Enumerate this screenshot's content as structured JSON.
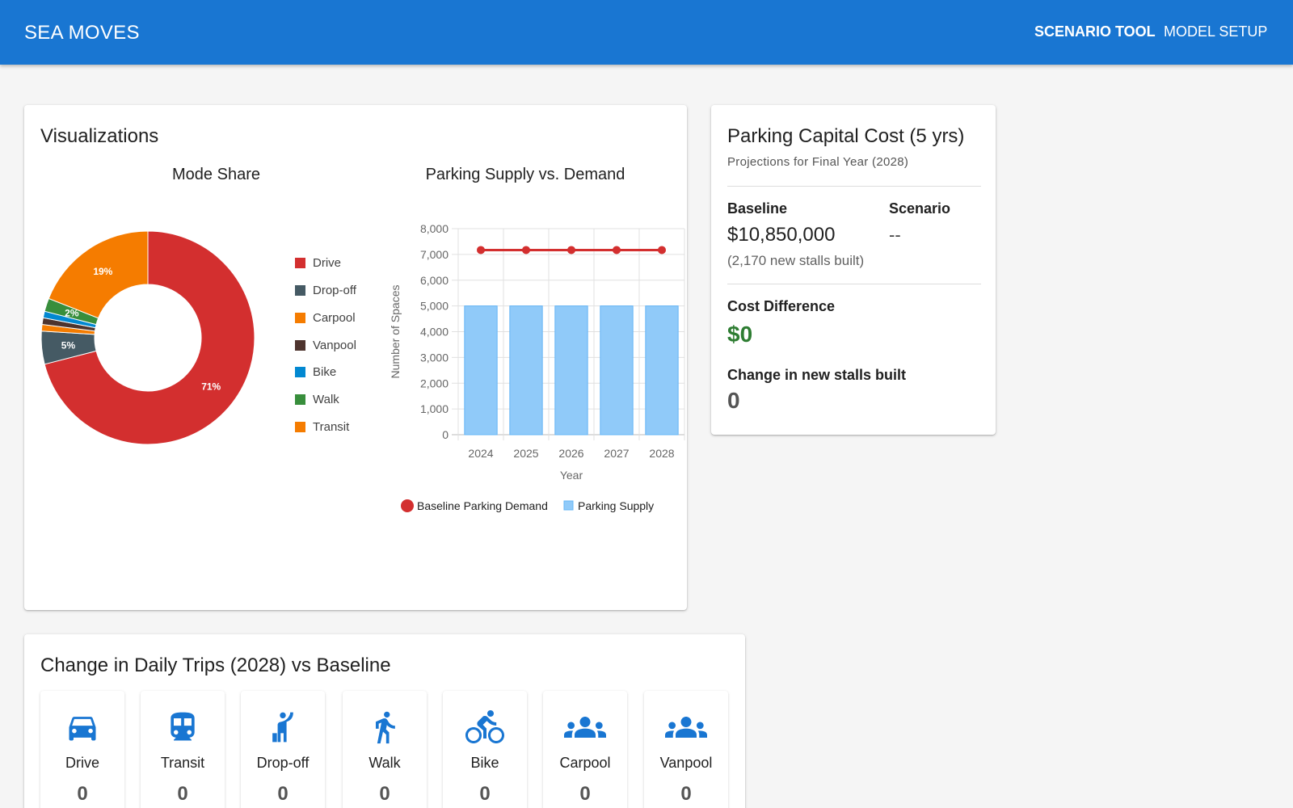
{
  "app": {
    "brand": "SEA MOVES",
    "nav": [
      {
        "label": "SCENARIO TOOL",
        "active": true
      },
      {
        "label": "MODEL SETUP",
        "active": false
      }
    ]
  },
  "visualizations": {
    "title": "Visualizations"
  },
  "colors": {
    "appbar": "#1976d2",
    "drive": "#d32f2f",
    "dropoff": "#455a64",
    "carpool": "#f57c00",
    "vanpool": "#4e342e",
    "bike": "#0288d1",
    "walk": "#388e3c",
    "transit": "#f57c00",
    "supply_bar": "#90caf9",
    "demand_line": "#d32f2f",
    "positive": "#2e7d32",
    "icon": "#1976d2"
  },
  "chart_data": [
    {
      "type": "pie",
      "title": "Mode Share",
      "donut": true,
      "legend_position": "right",
      "slices": [
        {
          "label": "Drive",
          "value": 71,
          "data_label": "71%",
          "color": "#d32f2f"
        },
        {
          "label": "Drop-off",
          "value": 5,
          "data_label": "5%",
          "color": "#455a64"
        },
        {
          "label": "Carpool",
          "value": 1,
          "data_label": "",
          "color": "#f57c00"
        },
        {
          "label": "Vanpool",
          "value": 1,
          "data_label": "",
          "color": "#4e342e"
        },
        {
          "label": "Bike",
          "value": 1,
          "data_label": "",
          "color": "#0288d1"
        },
        {
          "label": "Walk",
          "value": 2,
          "data_label": "2%",
          "color": "#388e3c"
        },
        {
          "label": "Transit",
          "value": 19,
          "data_label": "19%",
          "color": "#f57c00"
        }
      ]
    },
    {
      "type": "bar",
      "title": "Parking Supply vs. Demand",
      "xlabel": "Year",
      "ylabel": "Number of Spaces",
      "categories": [
        "2024",
        "2025",
        "2026",
        "2027",
        "2028"
      ],
      "ylim": [
        0,
        8000
      ],
      "yticks": [
        0,
        1000,
        2000,
        3000,
        4000,
        5000,
        6000,
        7000,
        8000
      ],
      "ytick_labels": [
        "0",
        "1,000",
        "2,000",
        "3,000",
        "4,000",
        "5,000",
        "6,000",
        "7,000",
        "8,000"
      ],
      "grid": true,
      "legend_position": "bottom",
      "series": [
        {
          "name": "Baseline Parking Demand",
          "type": "line",
          "values": [
            7170,
            7170,
            7170,
            7170,
            7170
          ],
          "color": "#d32f2f"
        },
        {
          "name": "Parking Supply",
          "type": "bar",
          "values": [
            5000,
            5000,
            5000,
            5000,
            5000
          ],
          "color": "#90caf9"
        }
      ]
    }
  ],
  "cost": {
    "title": "Parking Capital Cost (5 yrs)",
    "subtitle": "Projections for Final Year (2028)",
    "baseline_label": "Baseline",
    "baseline_value": "$10,850,000",
    "baseline_note": "(2,170 new stalls built)",
    "scenario_label": "Scenario",
    "scenario_value": "--",
    "diff_label": "Cost Difference",
    "diff_value": "$0",
    "stalls_label": "Change in new stalls built",
    "stalls_value": "0"
  },
  "trips": {
    "title": "Change in Daily Trips (2028) vs Baseline",
    "modes": [
      {
        "label": "Drive",
        "value": "0",
        "icon": "car-icon"
      },
      {
        "label": "Transit",
        "value": "0",
        "icon": "train-icon"
      },
      {
        "label": "Drop-off",
        "value": "0",
        "icon": "hail-icon"
      },
      {
        "label": "Walk",
        "value": "0",
        "icon": "walk-icon"
      },
      {
        "label": "Bike",
        "value": "0",
        "icon": "bike-icon"
      },
      {
        "label": "Carpool",
        "value": "0",
        "icon": "group-icon"
      },
      {
        "label": "Vanpool",
        "value": "0",
        "icon": "group-icon"
      }
    ]
  }
}
